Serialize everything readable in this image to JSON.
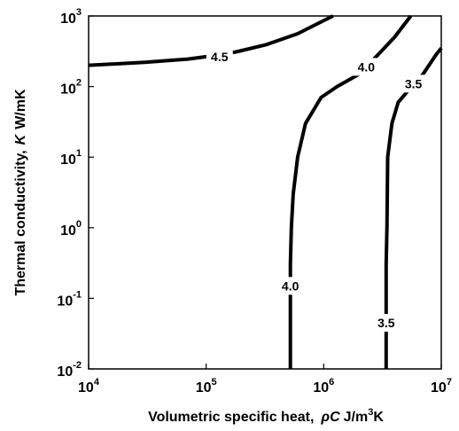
{
  "chart_data": {
    "type": "line",
    "xscale": "log",
    "yscale": "log",
    "xlim": [
      10000,
      10000000
    ],
    "ylim": [
      0.01,
      1000
    ],
    "grid": false,
    "xlabel": {
      "main": "Volumetric specific heat,",
      "symbol": "ρC",
      "unit": "J/m",
      "unit_sup": "3",
      "unit_tail": "K"
    },
    "ylabel": {
      "main": "Thermal conductivity,",
      "symbol": "K",
      "unit": "W/mK"
    },
    "x_ticks": [
      {
        "base": "10",
        "exp": "4",
        "value": 10000
      },
      {
        "base": "10",
        "exp": "5",
        "value": 100000
      },
      {
        "base": "10",
        "exp": "6",
        "value": 1000000
      },
      {
        "base": "10",
        "exp": "7",
        "value": 10000000
      }
    ],
    "y_ticks": [
      {
        "base": "10",
        "exp": "-2",
        "value": 0.01
      },
      {
        "base": "10",
        "exp": "-1",
        "value": 0.1
      },
      {
        "base": "10",
        "exp": "0",
        "value": 1
      },
      {
        "base": "10",
        "exp": "1",
        "value": 10
      },
      {
        "base": "10",
        "exp": "2",
        "value": 100
      },
      {
        "base": "10",
        "exp": "3",
        "value": 1000
      }
    ],
    "series": [
      {
        "points": [
          [
            10000,
            200
          ],
          [
            30000,
            220
          ],
          [
            70000,
            245
          ],
          [
            100000,
            265
          ],
          [
            180000,
            310
          ],
          [
            320000,
            390
          ],
          [
            600000,
            560
          ],
          [
            850000,
            750
          ],
          [
            1200000,
            1000
          ]
        ],
        "labels": [
          {
            "text": "4.5",
            "x": 130000,
            "y": 265
          }
        ]
      },
      {
        "points": [
          [
            520000,
            0.01
          ],
          [
            520000,
            0.3
          ],
          [
            530000,
            1
          ],
          [
            550000,
            3
          ],
          [
            600000,
            10
          ],
          [
            700000,
            30
          ],
          [
            950000,
            70
          ],
          [
            1300000,
            100
          ],
          [
            2000000,
            150
          ],
          [
            3000000,
            300
          ],
          [
            4000000,
            500
          ],
          [
            5500000,
            1000
          ]
        ],
        "labels": [
          {
            "text": "4.0",
            "x": 2300000,
            "y": 190
          },
          {
            "text": "4.0",
            "x": 520000,
            "y": 0.15
          }
        ]
      },
      {
        "points": [
          [
            3400000,
            0.01
          ],
          [
            3400000,
            0.3
          ],
          [
            3450000,
            1
          ],
          [
            3500000,
            10
          ],
          [
            3800000,
            30
          ],
          [
            4300000,
            60
          ],
          [
            5300000,
            90
          ],
          [
            7000000,
            150
          ],
          [
            9000000,
            280
          ],
          [
            10000000,
            350
          ]
        ],
        "labels": [
          {
            "text": "3.5",
            "x": 5800000,
            "y": 110
          },
          {
            "text": "3.5",
            "x": 3400000,
            "y": 0.045
          }
        ]
      }
    ]
  }
}
